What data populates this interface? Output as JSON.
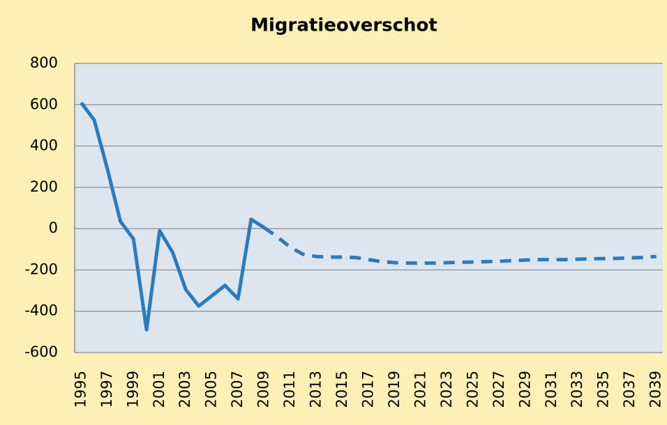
{
  "chart_data": {
    "type": "line",
    "title": "Migratieoverschot",
    "categories": [
      "1995",
      null,
      "1997",
      null,
      "1999",
      null,
      "2001",
      null,
      "2003",
      null,
      "2005",
      null,
      "2007",
      null,
      "2009",
      null,
      "2011",
      null,
      "2013",
      null,
      "2015",
      null,
      "2017",
      null,
      "2019",
      null,
      "2021",
      null,
      "2023",
      null,
      "2025",
      null,
      "2027",
      null,
      "2029",
      null,
      "2031",
      null,
      "2033",
      null,
      "2035",
      null,
      "2037",
      null,
      "2039"
    ],
    "series": [
      {
        "color": "#2a7bbf",
        "dashed": false,
        "values": [
          610,
          525,
          290,
          35,
          -50,
          -490,
          -10,
          -115,
          -295,
          -375,
          -325,
          -275,
          -340,
          45,
          5,
          null,
          null,
          null,
          null,
          null,
          null,
          null,
          null,
          null,
          null,
          null,
          null,
          null,
          null,
          null,
          null,
          null,
          null,
          null,
          null,
          null,
          null,
          null,
          null,
          null,
          null,
          null,
          null,
          null,
          null
        ]
      },
      {
        "color": "#2a7bbf",
        "dashed": true,
        "values": [
          null,
          null,
          null,
          null,
          null,
          null,
          null,
          null,
          null,
          null,
          null,
          null,
          null,
          null,
          5,
          -40,
          -90,
          -125,
          -135,
          -138,
          -138,
          -140,
          -150,
          -160,
          -165,
          -167,
          -167,
          -167,
          -165,
          -163,
          -162,
          -160,
          -158,
          -155,
          -152,
          -150,
          -150,
          -150,
          -148,
          -146,
          -145,
          -144,
          -142,
          -140,
          -135
        ]
      }
    ],
    "ylim": [
      -600,
      800
    ],
    "yticks": [
      -600,
      -400,
      -200,
      0,
      200,
      400,
      600,
      800
    ],
    "grid": true
  }
}
